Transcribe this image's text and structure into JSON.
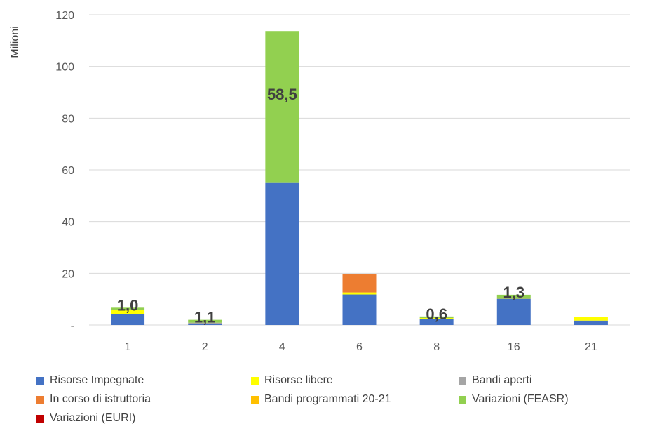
{
  "chart_data": {
    "type": "bar",
    "stacked": true,
    "ylabel": "Milioni",
    "ylim": [
      0,
      120
    ],
    "yticks": [
      0,
      20,
      40,
      60,
      80,
      100,
      120
    ],
    "ytick_labels": [
      "-",
      "20",
      "40",
      "60",
      "80",
      "100",
      "120"
    ],
    "grid": true,
    "categories": [
      "1",
      "2",
      "4",
      "6",
      "8",
      "16",
      "21"
    ],
    "series": [
      {
        "name": "Risorse Impegnate",
        "color": "#4472C4",
        "values": [
          4.2,
          0.4,
          55.2,
          11.8,
          2.4,
          10.2,
          1.7
        ]
      },
      {
        "name": "Risorse libere",
        "color": "#FFFF00",
        "values": [
          1.5,
          0.0,
          0.0,
          0.8,
          0.3,
          0.2,
          1.3
        ]
      },
      {
        "name": "Bandi aperti",
        "color": "#A5A5A5",
        "values": [
          0.0,
          0.5,
          0.0,
          0.0,
          0.0,
          0.0,
          0.0
        ]
      },
      {
        "name": "In corso di istruttoria",
        "color": "#ED7D31",
        "values": [
          0.0,
          0.0,
          0.0,
          7.0,
          0.0,
          0.0,
          0.0
        ]
      },
      {
        "name": "Bandi programmati 20-21",
        "color": "#FFC000",
        "values": [
          0.0,
          0.0,
          0.0,
          0.0,
          0.0,
          0.0,
          0.0
        ]
      },
      {
        "name": "Variazioni  (FEASR)",
        "color": "#92D050",
        "values": [
          1.0,
          1.1,
          58.5,
          0.0,
          0.6,
          1.3,
          0.0
        ]
      },
      {
        "name": "Variazioni (EURI)",
        "color": "#C00000",
        "values": [
          0.0,
          0.0,
          0.0,
          0.0,
          0.0,
          0.0,
          0.0
        ]
      }
    ],
    "data_labels": [
      {
        "category": "1",
        "text": "1,0"
      },
      {
        "category": "2",
        "text": "1,1"
      },
      {
        "category": "4",
        "text": "58,5"
      },
      {
        "category": "8",
        "text": "0,6"
      },
      {
        "category": "16",
        "text": "1,3"
      }
    ],
    "legend_position": "bottom"
  }
}
